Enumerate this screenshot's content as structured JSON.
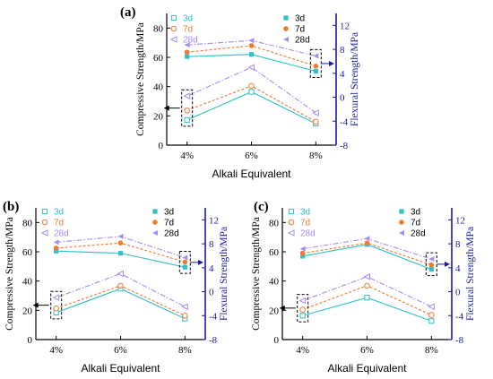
{
  "chart_data": [
    {
      "type": "line",
      "panel_label": "(a)",
      "categories": [
        "4%",
        "6%",
        "8%"
      ],
      "xlabel": "Alkali Equivalent",
      "ylabel": "Compressive Strength/MPa",
      "y2label": "Flexural Strength/MPa",
      "ylim": [
        0,
        90
      ],
      "y2lim": [
        -8,
        14
      ],
      "yticks": [
        0,
        20,
        40,
        60,
        80
      ],
      "y2ticks": [
        -8,
        -4,
        0,
        4,
        8,
        12
      ],
      "legend": [
        "3d",
        "7d",
        "28d"
      ],
      "legend_position": "top-right",
      "compressive": [
        {
          "name": "3d",
          "values": [
            60.5,
            62.0,
            50.5
          ]
        },
        {
          "name": "7d",
          "values": [
            63.5,
            68.0,
            54.0
          ]
        },
        {
          "name": "28d",
          "values": [
            68.5,
            71.5,
            61.0
          ]
        }
      ],
      "flexural": [
        {
          "name": "3d",
          "values": [
            -3.8,
            0.9,
            -4.4
          ]
        },
        {
          "name": "7d",
          "values": [
            -2.2,
            1.9,
            -4.1
          ]
        },
        {
          "name": "28d",
          "values": [
            0.2,
            5.0,
            -2.6
          ]
        }
      ]
    },
    {
      "type": "line",
      "panel_label": "(b)",
      "categories": [
        "4%",
        "6%",
        "8%"
      ],
      "xlabel": "Alkali Equivalent",
      "ylabel": "Compressive Strength/MPa",
      "y2label": "Flexural Strength/MPa",
      "ylim": [
        0,
        90
      ],
      "y2lim": [
        -8,
        14
      ],
      "yticks": [
        0,
        20,
        40,
        60,
        80
      ],
      "y2ticks": [
        -8,
        -4,
        0,
        4,
        8,
        12
      ],
      "legend": [
        "3d",
        "7d",
        "28d"
      ],
      "legend_position": "top-right",
      "compressive": [
        {
          "name": "3d",
          "values": [
            60.5,
            59.0,
            49.5
          ]
        },
        {
          "name": "7d",
          "values": [
            62.5,
            66.0,
            53.0
          ]
        },
        {
          "name": "28d",
          "values": [
            66.5,
            70.5,
            56.0
          ]
        }
      ],
      "flexural": [
        {
          "name": "3d",
          "values": [
            -3.5,
            0.5,
            -4.5
          ]
        },
        {
          "name": "7d",
          "values": [
            -2.8,
            1.0,
            -4.0
          ]
        },
        {
          "name": "28d",
          "values": [
            -1.0,
            3.0,
            -2.5
          ]
        }
      ]
    },
    {
      "type": "line",
      "panel_label": "(c)",
      "categories": [
        "4%",
        "6%",
        "8%"
      ],
      "xlabel": "Alkali Equivalent",
      "ylabel": "Compressive Strength/MPa",
      "y2label": "Flexural Strength/MPa",
      "ylim": [
        0,
        90
      ],
      "y2lim": [
        -8,
        14
      ],
      "yticks": [
        0,
        20,
        40,
        60,
        80
      ],
      "y2ticks": [
        -8,
        -4,
        0,
        4,
        8,
        12
      ],
      "legend": [
        "3d",
        "7d",
        "28d"
      ],
      "legend_position": "top-right",
      "compressive": [
        {
          "name": "3d",
          "values": [
            57.0,
            65.0,
            48.0
          ]
        },
        {
          "name": "7d",
          "values": [
            59.0,
            66.0,
            51.0
          ]
        },
        {
          "name": "28d",
          "values": [
            62.0,
            69.0,
            55.0
          ]
        }
      ],
      "flexural": [
        {
          "name": "3d",
          "values": [
            -4.0,
            -1.0,
            -4.9
          ]
        },
        {
          "name": "7d",
          "values": [
            -3.0,
            1.0,
            -3.9
          ]
        },
        {
          "name": "28d",
          "values": [
            -1.5,
            2.5,
            -2.5
          ]
        }
      ]
    }
  ],
  "style": {
    "colors": {
      "3d": "#2fc0c9",
      "7d": "#ef7a32",
      "28d": "#a78cf0"
    },
    "right_axis_color": "#1a1aa0",
    "marker_types": {
      "compressive": "filled",
      "flexural": "open"
    }
  }
}
